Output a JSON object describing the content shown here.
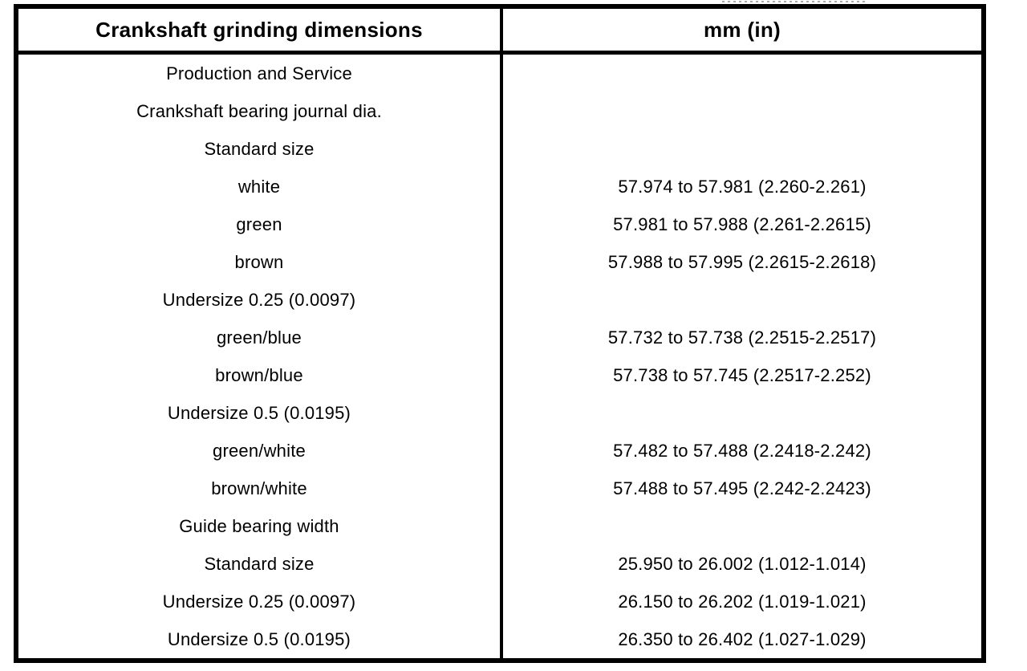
{
  "table": {
    "header": {
      "dimensions_label": "Crankshaft grinding dimensions",
      "units_label": "mm (in)"
    },
    "rows": [
      {
        "label": "Production and Service",
        "value": ""
      },
      {
        "label": "Crankshaft bearing journal dia.",
        "value": ""
      },
      {
        "label": "Standard size",
        "value": ""
      },
      {
        "label": "white",
        "value": "57.974 to 57.981 (2.260-2.261)"
      },
      {
        "label": "green",
        "value": "57.981 to 57.988 (2.261-2.2615)"
      },
      {
        "label": "brown",
        "value": "57.988 to 57.995 (2.2615-2.2618)"
      },
      {
        "label": "Undersize 0.25 (0.0097)",
        "value": ""
      },
      {
        "label": "green/blue",
        "value": "57.732 to 57.738 (2.2515-2.2517)"
      },
      {
        "label": "brown/blue",
        "value": "57.738 to 57.745 (2.2517-2.252)"
      },
      {
        "label": "Undersize 0.5 (0.0195)",
        "value": ""
      },
      {
        "label": "green/white",
        "value": "57.482 to 57.488 (2.2418-2.242)"
      },
      {
        "label": "brown/white",
        "value": "57.488 to 57.495 (2.242-2.2423)"
      },
      {
        "label": "Guide bearing width",
        "value": ""
      },
      {
        "label": "Standard size",
        "value": "25.950 to 26.002 (1.012-1.014)"
      },
      {
        "label": "Undersize 0.25 (0.0097)",
        "value": "26.150 to 26.202 (1.019-1.021)"
      },
      {
        "label": "Undersize 0.5 (0.0195)",
        "value": "26.350 to 26.402 (1.027-1.029)"
      }
    ],
    "colors": {
      "border": "#000000",
      "background": "#ffffff",
      "text": "#000000"
    }
  }
}
